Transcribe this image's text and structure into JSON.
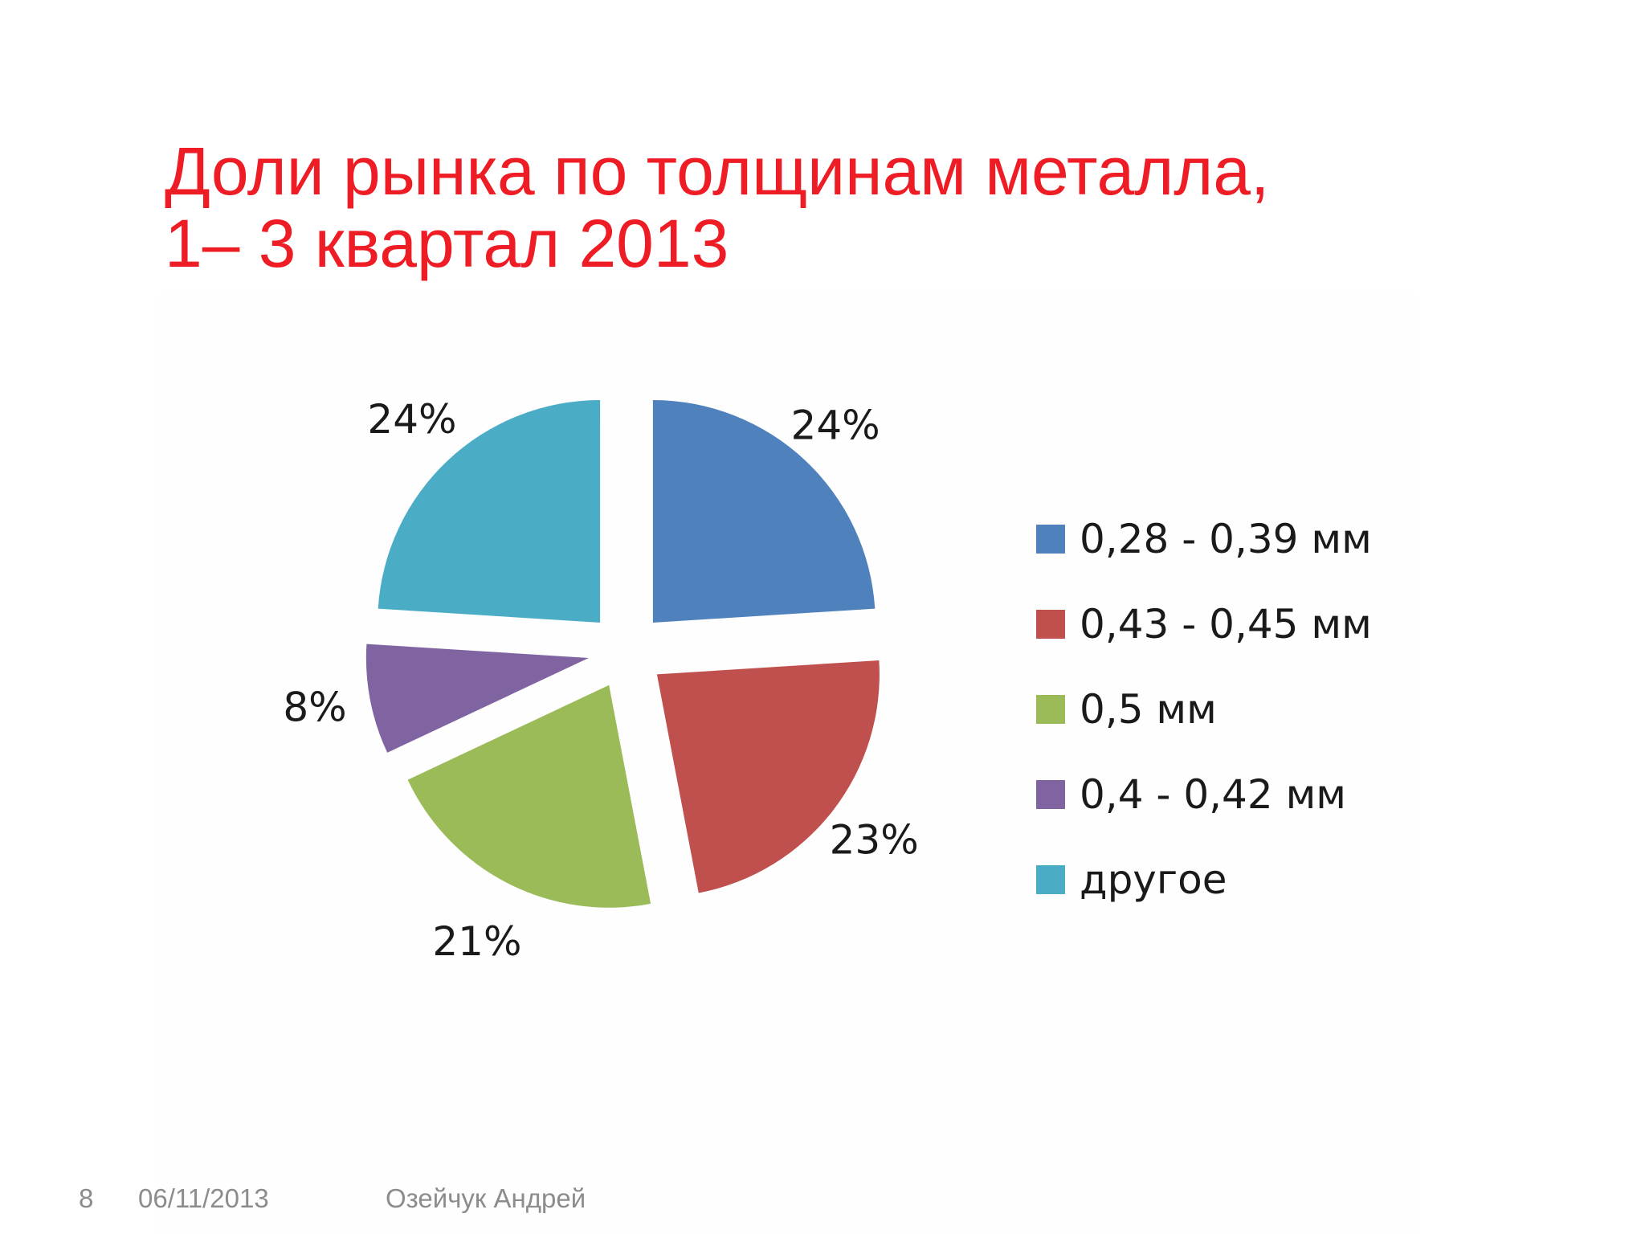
{
  "slide": {
    "title_line1": "Доли рынка по толщинам металла,",
    "title_line2": "1– 3 квартал 2013"
  },
  "chart_data": {
    "type": "pie",
    "exploded": true,
    "legend_position": "right",
    "slices": [
      {
        "label": "0,28 - 0,39 мм",
        "value": 24,
        "data_label": "24%",
        "color": "#4f81bd"
      },
      {
        "label": "0,43 - 0,45 мм",
        "value": 23,
        "data_label": "23%",
        "color": "#c0504d"
      },
      {
        "label": "0,5 мм",
        "value": 21,
        "data_label": "21%",
        "color": "#9bbb59"
      },
      {
        "label": "0,4 - 0,42 мм",
        "value": 8,
        "data_label": "8%",
        "color": "#8064a2"
      },
      {
        "label": "другое",
        "value": 24,
        "data_label": "24%",
        "color": "#4bacc6"
      }
    ]
  },
  "footer": {
    "page_number": "8",
    "date": "06/11/2013",
    "author": "Озейчук Андрей"
  }
}
